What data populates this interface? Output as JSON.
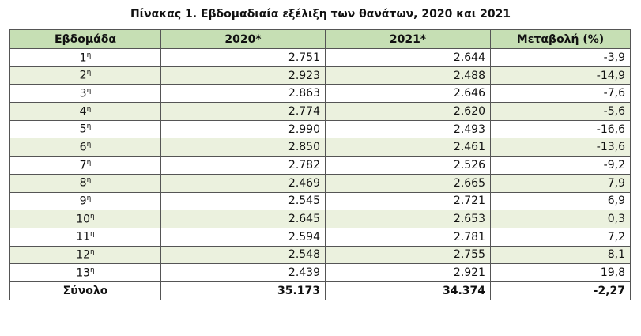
{
  "title": "Πίνακας 1. Εβδομαδιαία εξέλιξη των θανάτων, 2020 και 2021",
  "table": {
    "header": [
      "Εβδομάδα",
      "2020*",
      "2021*",
      "Μεταβολή (%)"
    ],
    "rows": [
      {
        "week": "1",
        "sup": "η",
        "cells": [
          "2.751",
          "2.644",
          "-3,9"
        ]
      },
      {
        "week": "2",
        "sup": "η",
        "cells": [
          "2.923",
          "2.488",
          "-14,9"
        ]
      },
      {
        "week": "3",
        "sup": "η",
        "cells": [
          "2.863",
          "2.646",
          "-7,6"
        ]
      },
      {
        "week": "4",
        "sup": "η",
        "cells": [
          "2.774",
          "2.620",
          "-5,6"
        ]
      },
      {
        "week": "5",
        "sup": "η",
        "cells": [
          "2.990",
          "2.493",
          "-16,6"
        ]
      },
      {
        "week": "6",
        "sup": "η",
        "cells": [
          "2.850",
          "2.461",
          "-13,6"
        ]
      },
      {
        "week": "7",
        "sup": "η",
        "cells": [
          "2.782",
          "2.526",
          "-9,2"
        ]
      },
      {
        "week": "8",
        "sup": "η",
        "cells": [
          "2.469",
          "2.665",
          "7,9"
        ]
      },
      {
        "week": "9",
        "sup": "η",
        "cells": [
          "2.545",
          "2.721",
          "6,9"
        ]
      },
      {
        "week": "10",
        "sup": "η",
        "cells": [
          "2.645",
          "2.653",
          "0,3"
        ]
      },
      {
        "week": "11",
        "sup": "η",
        "cells": [
          "2.594",
          "2.781",
          "7,2"
        ]
      },
      {
        "week": "12",
        "sup": "η",
        "cells": [
          "2.548",
          "2.755",
          "8,1"
        ]
      },
      {
        "week": "13",
        "sup": "η",
        "cells": [
          "2.439",
          "2.921",
          "19,8"
        ]
      }
    ],
    "total": [
      "Σύνολο",
      "35.173",
      "34.374",
      "-2,27"
    ]
  }
}
